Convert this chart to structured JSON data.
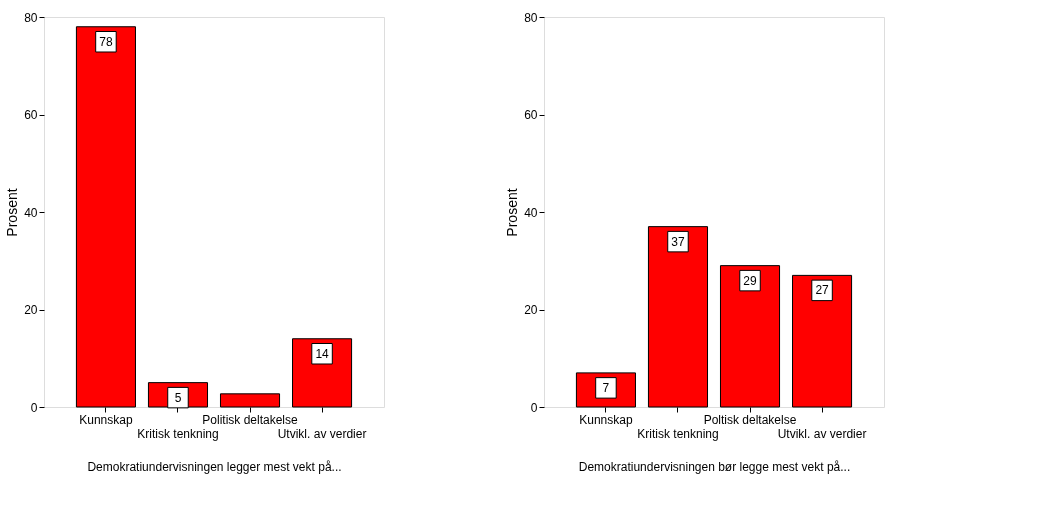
{
  "chart_data": [
    {
      "type": "bar",
      "categories": [
        "Kunnskap",
        "Kritisk tenkning",
        "Politisk deltakelse",
        "Utvikl. av verdier"
      ],
      "values": [
        78,
        5,
        2.7,
        14
      ],
      "value_labels": [
        "78",
        "5",
        null,
        "14"
      ],
      "color": "#ff0000",
      "ylim": [
        0,
        80
      ],
      "yticks": [
        0,
        20,
        40,
        60,
        80
      ],
      "ylabel": "Prosent",
      "xlabel": "Demokratiundervisningen legger mest vekt på...",
      "grid": false
    },
    {
      "type": "bar",
      "categories": [
        "Kunnskap",
        "Kritisk tenkning",
        "Poltisk deltakelse",
        "Utvikl. av verdier"
      ],
      "values": [
        7,
        37,
        29,
        27
      ],
      "data_labels": true,
      "color": "#ff0000",
      "ylim": [
        0,
        80
      ],
      "yticks": [
        0,
        20,
        40,
        60,
        80
      ],
      "ylabel": "Prosent",
      "xlabel": "Demokratiundervisningen bør legge mest vekt på...",
      "grid": false
    }
  ]
}
